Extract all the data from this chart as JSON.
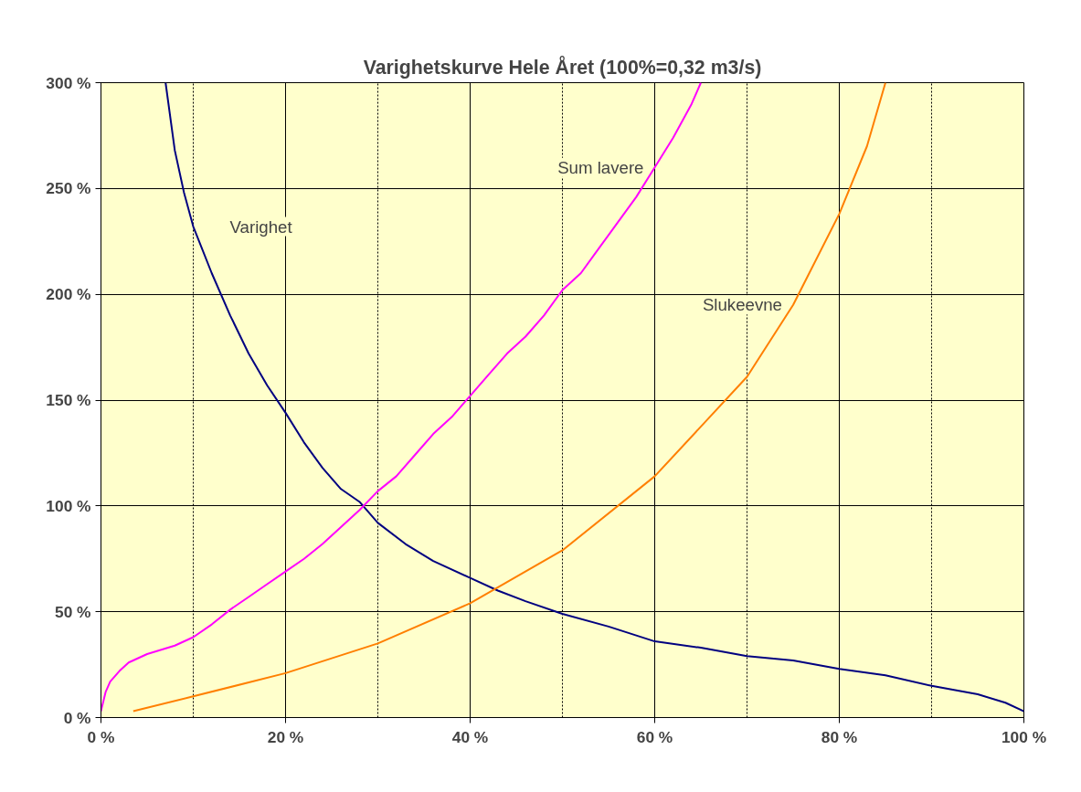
{
  "chart_data": {
    "type": "line",
    "title": "Varighetskurve Hele Året (100%=0,32 m3/s)",
    "xlim": [
      0,
      100
    ],
    "ylim": [
      0,
      300
    ],
    "xticks": [
      {
        "value": 0,
        "label": "0 %"
      },
      {
        "value": 20,
        "label": "20 %"
      },
      {
        "value": 40,
        "label": "40 %"
      },
      {
        "value": 60,
        "label": "60 %"
      },
      {
        "value": 80,
        "label": "80 %"
      },
      {
        "value": 100,
        "label": "100 %"
      }
    ],
    "yticks": [
      {
        "value": 0,
        "label": "0 %"
      },
      {
        "value": 50,
        "label": "50 %"
      },
      {
        "value": 100,
        "label": "100 %"
      },
      {
        "value": 150,
        "label": "150 %"
      },
      {
        "value": 200,
        "label": "200 %"
      },
      {
        "value": 250,
        "label": "250 %"
      },
      {
        "value": 300,
        "label": "300 %"
      }
    ],
    "grid": true,
    "marker": "none",
    "line_style": "solid",
    "series": [
      {
        "name": "Varighet",
        "color": "#000080",
        "x": [
          7,
          8,
          9,
          10,
          12,
          14,
          16,
          18,
          20,
          22,
          24,
          26,
          28,
          30,
          33,
          36,
          40,
          43,
          46,
          50,
          55,
          60,
          65,
          70,
          75,
          80,
          85,
          90,
          95,
          98,
          100
        ],
        "values": [
          300,
          268,
          248,
          232,
          210,
          190,
          172,
          157,
          144,
          130,
          118,
          108,
          102,
          92,
          82,
          74,
          66,
          60,
          55,
          49,
          43,
          36,
          33,
          29,
          27,
          23,
          20,
          15,
          11,
          7,
          3
        ]
      },
      {
        "name": "Sum lavere",
        "color": "#ff00ff",
        "x": [
          0,
          0.5,
          1,
          2,
          3,
          5,
          8,
          10,
          12,
          14,
          16,
          18,
          20,
          22,
          24,
          26,
          28,
          30,
          32,
          34,
          36,
          38,
          40,
          42,
          44,
          46,
          48,
          50,
          52,
          54,
          56,
          58,
          60,
          62,
          64,
          65
        ],
        "values": [
          3,
          12,
          17,
          22,
          26,
          30,
          34,
          38,
          44,
          51,
          57,
          63,
          69,
          75,
          82,
          90,
          98,
          107,
          114,
          124,
          134,
          142,
          152,
          162,
          172,
          180,
          190,
          202,
          210,
          222,
          234,
          246,
          260,
          274,
          290,
          300
        ]
      },
      {
        "name": "Slukeevne",
        "color": "#ff7f00",
        "x": [
          3.5,
          10,
          20,
          30,
          40,
          50,
          60,
          70,
          75,
          80,
          83,
          85
        ],
        "values": [
          3,
          10,
          21,
          35,
          54,
          79,
          114,
          161,
          195,
          238,
          270,
          300
        ]
      }
    ]
  }
}
